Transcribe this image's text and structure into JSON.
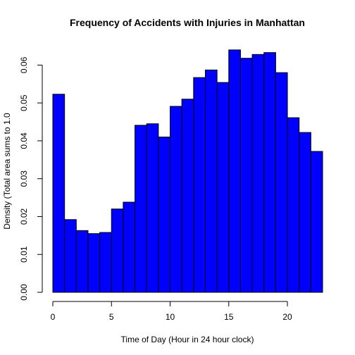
{
  "chart_data": {
    "type": "bar",
    "title": "Frequency of Accidents with Injuries in Manhattan",
    "xlabel": "Time of Day (Hour in 24 hour clock)",
    "ylabel": "Density (Total area sums to 1.0",
    "bin_edges": [
      0,
      1,
      2,
      3,
      4,
      5,
      6,
      7,
      8,
      9,
      10,
      11,
      12,
      13,
      14,
      15,
      16,
      17,
      18,
      19,
      20,
      21,
      22,
      23
    ],
    "values": [
      0.0523,
      0.0192,
      0.0163,
      0.0155,
      0.0158,
      0.022,
      0.0238,
      0.0441,
      0.0445,
      0.041,
      0.0491,
      0.051,
      0.0567,
      0.0587,
      0.0554,
      0.064,
      0.0618,
      0.0628,
      0.0633,
      0.058,
      0.0461,
      0.0422,
      0.0372
    ],
    "xlim": [
      0,
      23
    ],
    "ylim": [
      0,
      0.065
    ],
    "x_ticks": [
      0,
      5,
      10,
      15,
      20
    ],
    "y_ticks": [
      0.0,
      0.01,
      0.02,
      0.03,
      0.04,
      0.05,
      0.06
    ],
    "x_tick_labels": [
      "0",
      "5",
      "10",
      "15",
      "20"
    ],
    "y_tick_labels": [
      "0.00",
      "0.01",
      "0.02",
      "0.03",
      "0.04",
      "0.05",
      "0.06"
    ],
    "bar_color": "#0000ff",
    "grid": false
  }
}
